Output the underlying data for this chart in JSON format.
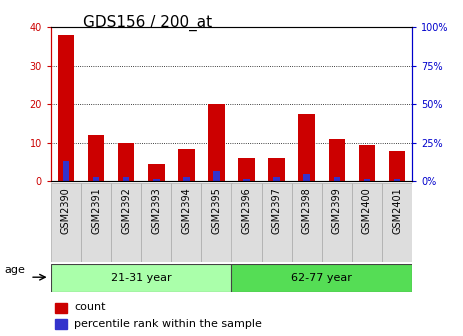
{
  "title": "GDS156 / 200_at",
  "samples": [
    "GSM2390",
    "GSM2391",
    "GSM2392",
    "GSM2393",
    "GSM2394",
    "GSM2395",
    "GSM2396",
    "GSM2397",
    "GSM2398",
    "GSM2399",
    "GSM2400",
    "GSM2401"
  ],
  "red_values": [
    38,
    12,
    10,
    4.5,
    8.5,
    20,
    6,
    6,
    17.5,
    11,
    9.5,
    8
  ],
  "blue_values_pct": [
    13,
    3,
    3,
    1.5,
    3,
    7,
    1.5,
    3,
    5,
    3,
    1.5,
    1.5
  ],
  "ylim_left": [
    0,
    40
  ],
  "ylim_right": [
    0,
    100
  ],
  "yticks_left": [
    0,
    10,
    20,
    30,
    40
  ],
  "yticks_right": [
    0,
    25,
    50,
    75,
    100
  ],
  "groups": [
    {
      "label": "21-31 year",
      "start": 0,
      "end": 6
    },
    {
      "label": "62-77 year",
      "start": 6,
      "end": 12
    }
  ],
  "age_label": "age",
  "legend_red": "count",
  "legend_blue": "percentile rank within the sample",
  "red_color": "#cc0000",
  "blue_color": "#3333cc",
  "group_color_left": "#aaffaa",
  "group_color_right": "#55dd55",
  "title_fontsize": 11,
  "tick_fontsize": 7,
  "label_fontsize": 8,
  "axis_color_left": "#cc0000",
  "axis_color_right": "#0000cc",
  "bg_xtick": "#dddddd",
  "spine_color": "#888888"
}
